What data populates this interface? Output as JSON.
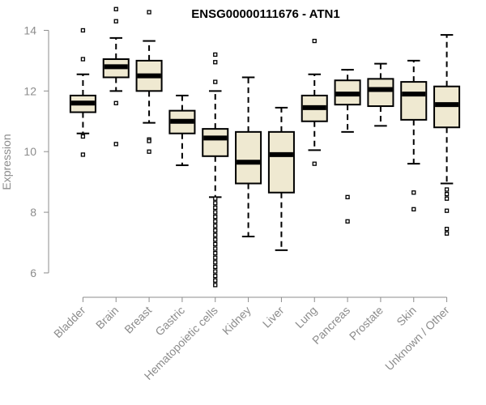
{
  "chart_data": {
    "type": "boxplot",
    "title": "ENSG00000111676 - ATN1",
    "xlabel": "",
    "ylabel": "Expression",
    "ylim": [
      5.25,
      14.6
    ],
    "yticks": [
      6,
      8,
      10,
      12,
      14
    ],
    "box_fill": "#efe9d1",
    "categories": [
      "Bladder",
      "Brain",
      "Breast",
      "Gastric",
      "Hematopoietic cells",
      "Kidney",
      "Liver",
      "Lung",
      "Pancreas",
      "Prostate",
      "Skin",
      "Unknown / Other"
    ],
    "boxes": [
      {
        "category": "Bladder",
        "whisker_low": 10.6,
        "q1": 11.3,
        "median": 11.6,
        "q3": 11.85,
        "whisker_high": 12.55,
        "outliers": [
          14.0,
          13.05,
          10.5,
          9.9
        ]
      },
      {
        "category": "Brain",
        "whisker_low": 12.0,
        "q1": 12.45,
        "median": 12.8,
        "q3": 13.05,
        "whisker_high": 13.75,
        "outliers": [
          14.7,
          14.3,
          11.6,
          10.25
        ]
      },
      {
        "category": "Breast",
        "whisker_low": 10.95,
        "q1": 12.0,
        "median": 12.5,
        "q3": 13.0,
        "whisker_high": 13.65,
        "outliers": [
          14.6,
          10.4,
          10.35,
          10.0
        ]
      },
      {
        "category": "Gastric",
        "whisker_low": 9.55,
        "q1": 10.6,
        "median": 11.0,
        "q3": 11.35,
        "whisker_high": 11.85,
        "outliers": []
      },
      {
        "category": "Hematopoietic cells",
        "whisker_low": 8.5,
        "q1": 9.85,
        "median": 10.45,
        "q3": 10.75,
        "whisker_high": 12.0,
        "outliers": [
          13.2,
          12.95,
          12.3,
          8.45,
          8.3,
          8.15,
          8.0,
          7.85,
          7.7,
          7.55,
          7.4,
          7.25,
          7.1,
          6.95,
          6.8,
          6.65,
          6.5,
          6.35,
          6.2,
          6.05,
          5.9,
          5.75,
          5.6
        ]
      },
      {
        "category": "Kidney",
        "whisker_low": 7.2,
        "q1": 8.95,
        "median": 9.65,
        "q3": 10.65,
        "whisker_high": 12.45,
        "outliers": []
      },
      {
        "category": "Liver",
        "whisker_low": 6.75,
        "q1": 8.65,
        "median": 9.9,
        "q3": 10.65,
        "whisker_high": 11.45,
        "outliers": []
      },
      {
        "category": "Lung",
        "whisker_low": 10.05,
        "q1": 11.0,
        "median": 11.45,
        "q3": 11.85,
        "whisker_high": 12.55,
        "outliers": [
          13.65,
          9.6
        ]
      },
      {
        "category": "Pancreas",
        "whisker_low": 10.65,
        "q1": 11.55,
        "median": 11.9,
        "q3": 12.35,
        "whisker_high": 12.7,
        "outliers": [
          8.5,
          7.7
        ]
      },
      {
        "category": "Prostate",
        "whisker_low": 10.85,
        "q1": 11.5,
        "median": 12.05,
        "q3": 12.4,
        "whisker_high": 12.9,
        "outliers": []
      },
      {
        "category": "Skin",
        "whisker_low": 9.6,
        "q1": 11.05,
        "median": 11.9,
        "q3": 12.3,
        "whisker_high": 13.0,
        "outliers": [
          8.65,
          8.1
        ]
      },
      {
        "category": "Unknown / Other",
        "whisker_low": 8.95,
        "q1": 10.8,
        "median": 11.55,
        "q3": 12.15,
        "whisker_high": 13.85,
        "outliers": [
          8.75,
          8.6,
          8.45,
          8.05,
          7.45,
          7.3
        ]
      }
    ]
  }
}
